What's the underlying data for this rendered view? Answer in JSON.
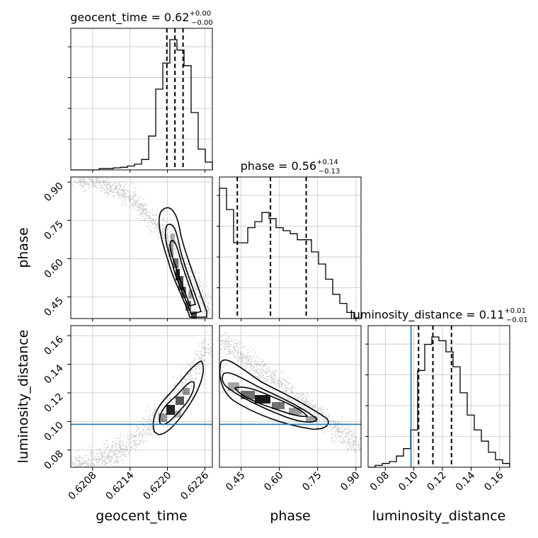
{
  "chart_data": {
    "type": "corner",
    "parameters": [
      "geocent_time",
      "phase",
      "luminosity_distance"
    ],
    "axis_labels": {
      "geocent_time": "geocent_time",
      "phase": "phase",
      "luminosity_distance": "luminosity_distance"
    },
    "ranges": {
      "geocent_time": [
        0.62045,
        0.62272
      ],
      "phase": [
        0.365,
        0.92
      ],
      "luminosity_distance": [
        0.068,
        0.167
      ]
    },
    "ticks": {
      "geocent_time": [
        0.6208,
        0.6214,
        0.622,
        0.6226
      ],
      "phase": [
        0.45,
        0.6,
        0.75,
        0.9
      ],
      "luminosity_distance": [
        0.08,
        0.1,
        0.12,
        0.14,
        0.16
      ]
    },
    "tick_labels": {
      "geocent_time": [
        "0.6208",
        "0.6214",
        "0.6220",
        "0.6226"
      ],
      "phase": [
        "0.45",
        "0.60",
        "0.75",
        "0.90"
      ],
      "luminosity_distance": [
        "0.08",
        "0.10",
        "0.12",
        "0.14",
        "0.16"
      ]
    },
    "titles": [
      {
        "param": "geocent_time",
        "prefix": "geocent_time = 0.62",
        "sup": "+0.00",
        "sub": "−0.00"
      },
      {
        "param": "phase",
        "prefix": "phase = 0.56",
        "sup": "+0.14",
        "sub": "−0.13"
      },
      {
        "param": "luminosity_distance",
        "prefix": "luminosity_distance = 0.11",
        "sup": "+0.01",
        "sub": "−0.01"
      }
    ],
    "quantiles": {
      "geocent_time": [
        0.62199,
        0.62212,
        0.62225
      ],
      "phase": [
        0.435,
        0.565,
        0.705
      ],
      "luminosity_distance": [
        0.1033,
        0.1133,
        0.1263
      ]
    },
    "injection": {
      "luminosity_distance": 0.098
    },
    "histograms": {
      "geocent_time": [
        0,
        0,
        0,
        0,
        0.5,
        0.5,
        0.8,
        1,
        1.5,
        2.2,
        4,
        13,
        31,
        41,
        50,
        46,
        40,
        22,
        8,
        3
      ],
      "phase": [
        43,
        36,
        25,
        25,
        30,
        32,
        35,
        33,
        30,
        29,
        28,
        26,
        26,
        22,
        18,
        13,
        8,
        5,
        2,
        0
      ],
      "luminosity_distance": [
        0,
        1,
        2,
        3,
        6,
        10,
        20,
        52,
        66,
        70,
        68,
        62,
        54,
        40,
        28,
        20,
        14,
        8,
        4,
        2
      ]
    },
    "grid": true,
    "injection_color": "#1f77b4",
    "line_color": "#000000"
  }
}
